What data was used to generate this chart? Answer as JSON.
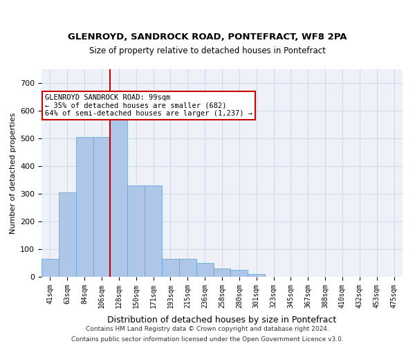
{
  "title1": "GLENROYD, SANDROCK ROAD, PONTEFRACT, WF8 2PA",
  "title2": "Size of property relative to detached houses in Pontefract",
  "xlabel": "Distribution of detached houses by size in Pontefract",
  "ylabel": "Number of detached properties",
  "bar_color": "#aec6e8",
  "bar_edge_color": "#5a9fd4",
  "grid_color": "#d0d8e8",
  "background_color": "#eef2f8",
  "categories": [
    "41sqm",
    "63sqm",
    "84sqm",
    "106sqm",
    "128sqm",
    "150sqm",
    "171sqm",
    "193sqm",
    "215sqm",
    "236sqm",
    "258sqm",
    "280sqm",
    "301sqm",
    "323sqm",
    "345sqm",
    "367sqm",
    "388sqm",
    "410sqm",
    "432sqm",
    "453sqm",
    "475sqm"
  ],
  "values": [
    65,
    305,
    505,
    505,
    580,
    330,
    330,
    65,
    65,
    50,
    30,
    25,
    10,
    0,
    0,
    0,
    0,
    0,
    0,
    0,
    0
  ],
  "ylim": [
    0,
    750
  ],
  "yticks": [
    0,
    100,
    200,
    300,
    400,
    500,
    600,
    700
  ],
  "property_line_x": 3.5,
  "annotation_text": "GLENROYD SANDROCK ROAD: 99sqm\n← 35% of detached houses are smaller (682)\n64% of semi-detached houses are larger (1,237) →",
  "annotation_box_color": "#ffffff",
  "annotation_edge_color": "#cc0000",
  "property_line_color": "#cc0000",
  "footer_line1": "Contains HM Land Registry data © Crown copyright and database right 2024.",
  "footer_line2": "Contains public sector information licensed under the Open Government Licence v3.0."
}
